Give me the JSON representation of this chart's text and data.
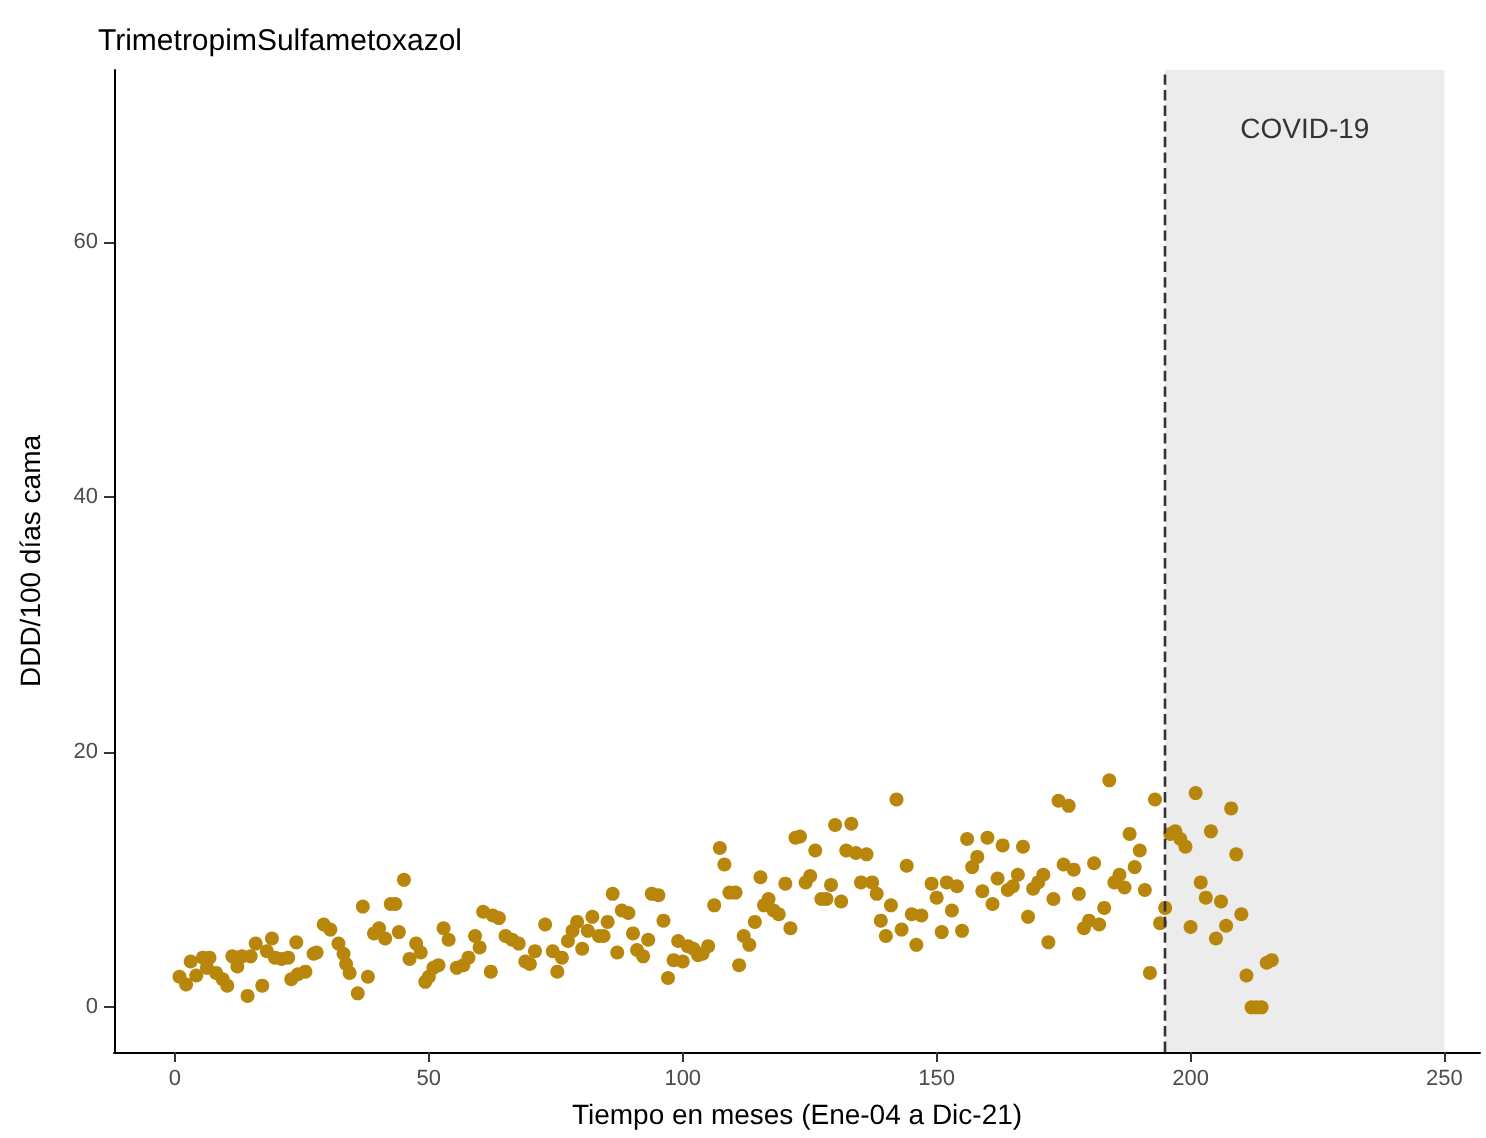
{
  "chart_data": {
    "type": "scatter",
    "title": "TrimetropimSulfametoxazol",
    "xlabel": "Tiempo en meses (Ene-04 a Dic-21)",
    "ylabel": "DDD/100 días cama",
    "x": [
      0.9,
      2.2,
      3.1,
      4.2,
      5.5,
      6.3,
      6.8,
      8.1,
      9.4,
      10.3,
      11.3,
      12.3,
      13.2,
      14.3,
      14.9,
      15.9,
      17.2,
      18.1,
      19.1,
      19.7,
      21,
      22.3,
      22.9,
      23.9,
      24.2,
      25.7,
      27.3,
      27.9,
      29.3,
      30.6,
      32.2,
      33.2,
      33.7,
      34.4,
      36,
      37,
      38,
      39.2,
      40.2,
      41.4,
      42.5,
      43.4,
      44.1,
      45.1,
      46.2,
      47.5,
      48.4,
      49.3,
      50,
      50.9,
      51.9,
      52.9,
      53.9,
      55.5,
      56.8,
      57.8,
      59.1,
      60,
      60.7,
      62.2,
      62.6,
      63.8,
      65.1,
      66.4,
      67.7,
      69,
      69.9,
      70.9,
      72.9,
      74.4,
      75.3,
      76.2,
      77.4,
      78.3,
      79.2,
      80.2,
      81.3,
      82.2,
      83.5,
      84.4,
      85.2,
      86.2,
      87.1,
      88,
      89.3,
      90.2,
      91,
      92.2,
      93.2,
      93.9,
      95.2,
      96.2,
      97.1,
      98.2,
      99.1,
      100,
      101,
      102.1,
      103,
      103.9,
      105,
      106.2,
      107.3,
      108.2,
      109.2,
      110.4,
      111.1,
      112,
      113.1,
      114.2,
      115.3,
      116,
      116.9,
      117.9,
      118.9,
      120.2,
      121.2,
      122.2,
      123.1,
      124.2,
      125.1,
      126.1,
      127.3,
      128.3,
      129.2,
      130,
      131.2,
      132.2,
      133.2,
      134.1,
      135.1,
      136.2,
      137.3,
      138.2,
      139,
      140,
      141,
      142.1,
      143.1,
      144.1,
      145.1,
      146,
      147,
      149,
      150,
      151,
      152,
      153,
      154,
      155,
      156,
      157,
      158,
      159,
      160,
      161,
      162,
      163,
      164,
      165,
      166,
      167,
      168,
      169,
      170,
      171,
      172,
      173,
      174,
      175,
      176,
      177,
      178,
      179,
      180,
      181,
      182,
      183,
      184,
      185,
      186,
      187,
      188,
      189,
      190,
      191,
      192,
      193,
      194,
      195,
      196,
      197,
      198,
      199,
      200,
      201,
      202,
      203,
      204,
      205,
      206,
      207,
      208,
      209,
      210,
      211,
      212,
      213,
      214,
      215,
      216
    ],
    "values": [
      2.4,
      1.8,
      3.6,
      2.5,
      3.9,
      3.1,
      3.9,
      2.7,
      2.2,
      1.7,
      4.0,
      3.2,
      4.0,
      0.9,
      4.0,
      5.0,
      1.7,
      4.4,
      5.4,
      3.9,
      3.8,
      3.9,
      2.2,
      5.1,
      2.6,
      2.8,
      4.2,
      4.3,
      6.5,
      6.1,
      5.0,
      4.2,
      3.4,
      2.7,
      1.1,
      7.9,
      2.4,
      5.8,
      6.2,
      5.4,
      8.1,
      8.1,
      5.9,
      10.0,
      3.8,
      5.0,
      4.3,
      2.0,
      2.4,
      3.1,
      3.3,
      6.2,
      5.3,
      3.1,
      3.3,
      3.9,
      5.6,
      4.7,
      7.5,
      2.8,
      7.2,
      7.0,
      5.6,
      5.3,
      5.0,
      3.6,
      3.4,
      4.4,
      6.5,
      4.4,
      2.8,
      3.9,
      5.2,
      6.0,
      6.7,
      4.6,
      6.0,
      7.1,
      5.6,
      5.6,
      6.7,
      8.9,
      4.3,
      7.6,
      7.4,
      5.8,
      4.5,
      4.0,
      5.3,
      8.9,
      8.8,
      6.8,
      2.3,
      3.7,
      5.2,
      3.6,
      4.8,
      4.6,
      4.1,
      4.2,
      4.8,
      8.0,
      12.5,
      11.2,
      9.0,
      9.0,
      3.3,
      5.6,
      4.9,
      6.7,
      10.2,
      8.0,
      8.5,
      7.6,
      7.3,
      9.7,
      6.2,
      13.3,
      13.4,
      9.8,
      10.3,
      12.3,
      8.5,
      8.5,
      9.6,
      14.3,
      8.3,
      12.3,
      14.4,
      12.1,
      9.8,
      12.0,
      9.8,
      8.9,
      6.8,
      5.6,
      8.0,
      16.3,
      6.1,
      11.1,
      7.3,
      4.9,
      7.2,
      9.7,
      8.6,
      5.9,
      9.8,
      7.6,
      9.5,
      6.0,
      13.2,
      11.0,
      11.8,
      9.1,
      13.3,
      8.1,
      10.1,
      12.7,
      9.2,
      9.5,
      10.4,
      12.6,
      7.1,
      9.3,
      9.8,
      10.4,
      5.1,
      8.5,
      16.2,
      11.2,
      15.8,
      10.8,
      8.9,
      6.2,
      6.8,
      11.3,
      6.5,
      7.8,
      17.8,
      9.8,
      10.4,
      9.4,
      13.6,
      11.0,
      12.3,
      9.2,
      2.7,
      16.3,
      6.6,
      7.8,
      13.6,
      13.8,
      13.2,
      12.6,
      6.3,
      16.8,
      9.8,
      8.6,
      13.8,
      5.4,
      8.3,
      6.4,
      15.6,
      12.0,
      7.3,
      2.5,
      0,
      0,
      0,
      3.5,
      3.7
    ],
    "color": "#b8860b",
    "marker": "circle",
    "xlim": [
      -12,
      257
    ],
    "ylim": [
      -3.5,
      73.5
    ],
    "xticks": [
      0,
      50,
      100,
      150,
      200,
      250
    ],
    "yticks": [
      0,
      20,
      40,
      60
    ],
    "grid": false,
    "ref_lines": [
      {
        "axis": "x",
        "value": 195,
        "line_style": "dashed",
        "color": "#333333"
      }
    ],
    "bands": [
      {
        "axis": "x",
        "from": 195,
        "to": 250,
        "label": "COVID-19",
        "color": "#e5e5e5"
      }
    ]
  }
}
